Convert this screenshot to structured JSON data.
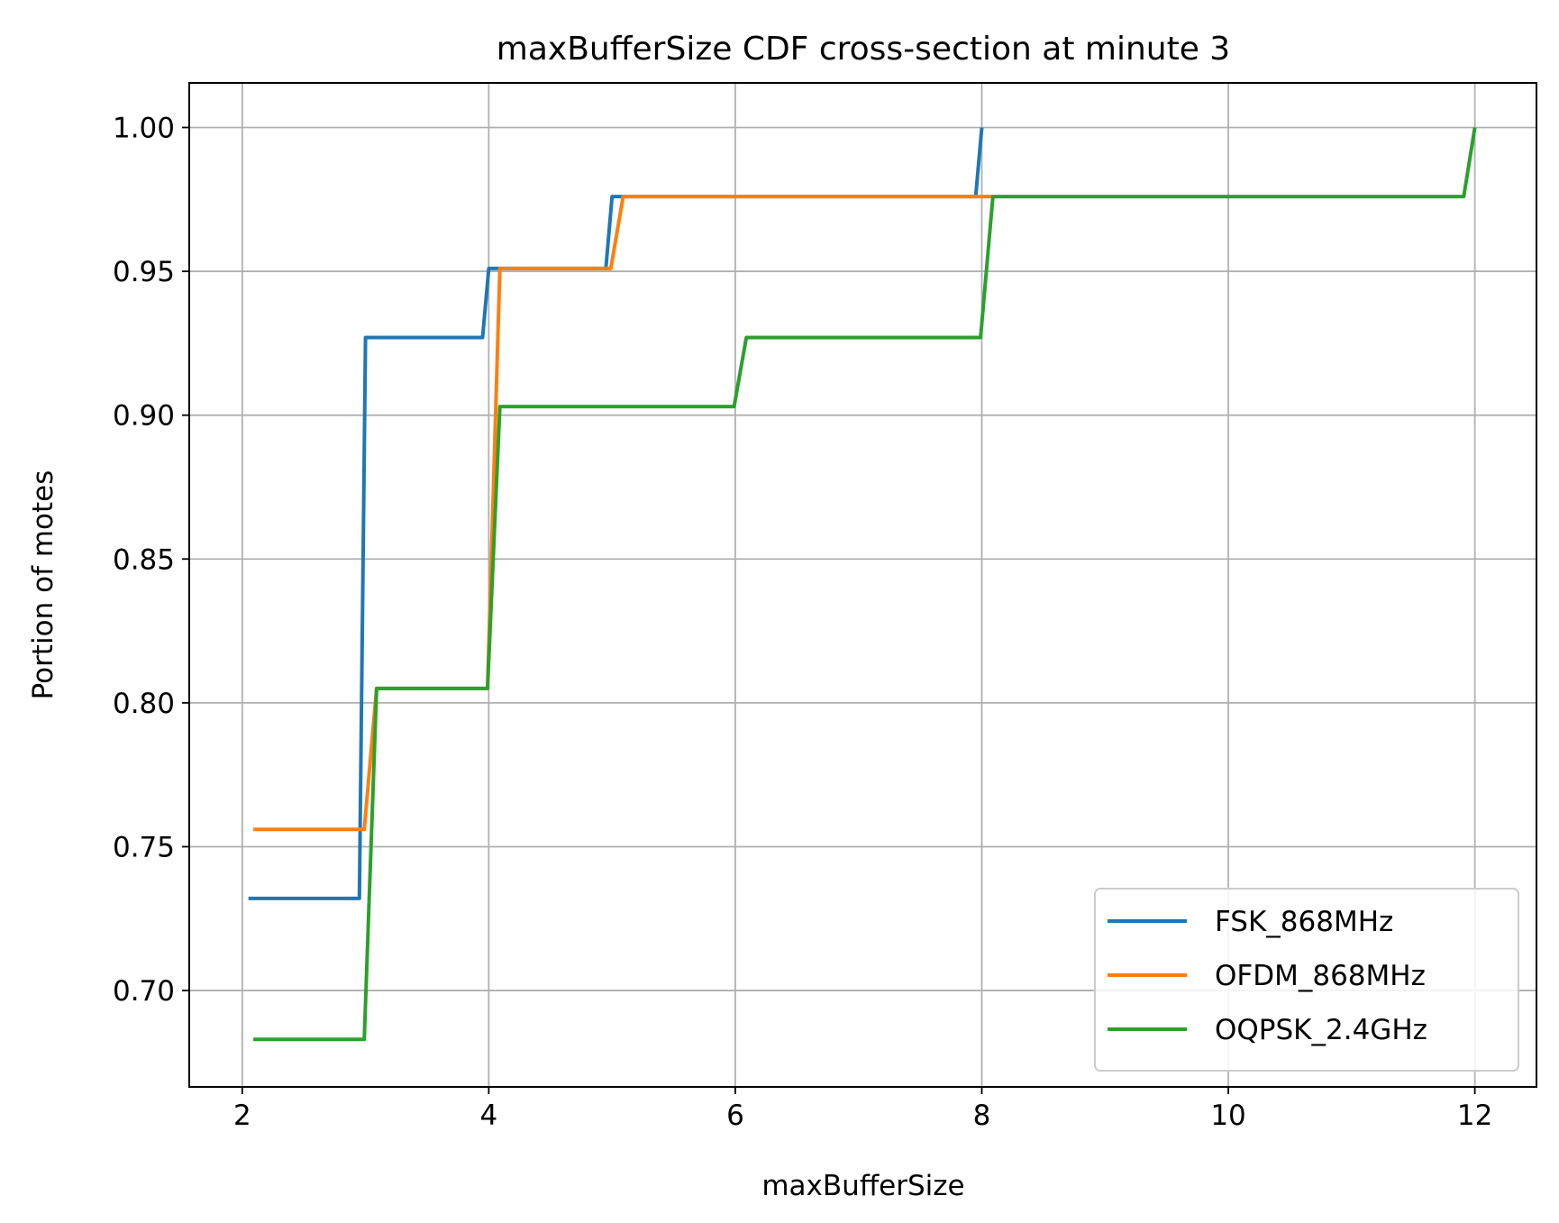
{
  "chart_data": {
    "type": "line",
    "title": "maxBufferSize CDF cross-section at minute 3",
    "xlabel": "maxBufferSize",
    "ylabel": "Portion of motes",
    "xlim": [
      1.57,
      12.5
    ],
    "ylim": [
      0.6665,
      1.0155
    ],
    "xticks": [
      2,
      4,
      6,
      8,
      10,
      12
    ],
    "xtick_labels": [
      "2",
      "4",
      "6",
      "8",
      "10",
      "12"
    ],
    "yticks": [
      0.7,
      0.75,
      0.8,
      0.85,
      0.9,
      0.95,
      1.0
    ],
    "ytick_labels": [
      "0.70",
      "0.75",
      "0.80",
      "0.85",
      "0.90",
      "0.95",
      "1.00"
    ],
    "grid": true,
    "legend_position": "lower-right",
    "series": [
      {
        "name": "FSK_868MHz",
        "color": "#1f77b4",
        "x": [
          2.05,
          2.95,
          3.0,
          3.05,
          3.95,
          4.0,
          4.05,
          4.95,
          5.0,
          5.05,
          7.95,
          8.0
        ],
        "y": [
          0.732,
          0.732,
          0.927,
          0.927,
          0.927,
          0.951,
          0.951,
          0.951,
          0.976,
          0.976,
          0.976,
          1.0
        ]
      },
      {
        "name": "OFDM_868MHz",
        "color": "#ff7f0e",
        "x": [
          2.09,
          2.99,
          3.09,
          3.99,
          4.09,
          4.99,
          5.09,
          8.09
        ],
        "y": [
          0.756,
          0.756,
          0.805,
          0.805,
          0.951,
          0.951,
          0.976,
          0.976
        ]
      },
      {
        "name": "OQPSK_2.4GHz",
        "color": "#2ca02c",
        "x": [
          2.09,
          2.99,
          3.09,
          3.99,
          4.09,
          5.99,
          6.09,
          7.99,
          8.09,
          11.91,
          12.0
        ],
        "y": [
          0.683,
          0.683,
          0.805,
          0.805,
          0.903,
          0.903,
          0.927,
          0.927,
          0.976,
          0.976,
          1.0
        ]
      }
    ]
  }
}
